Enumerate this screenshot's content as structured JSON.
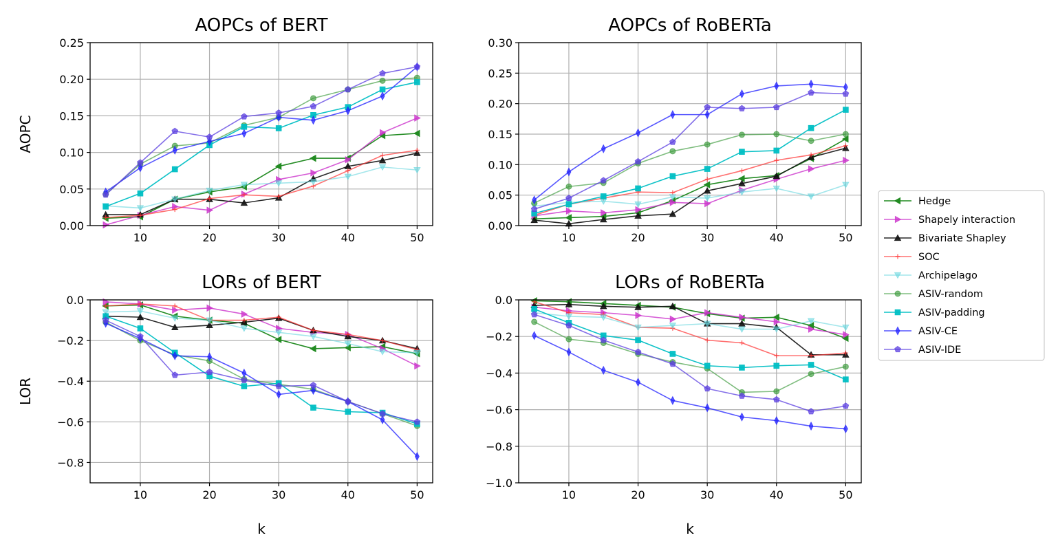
{
  "chart_data": {
    "type": "line",
    "x": [
      5,
      10,
      15,
      20,
      25,
      30,
      35,
      40,
      45,
      50
    ],
    "xlabel": "k",
    "legend": {
      "placement": "right",
      "entries": [
        {
          "name": "Hedge",
          "color": "#228b22",
          "marker": "tri-left",
          "alpha": 1.0
        },
        {
          "name": "Shapely interaction",
          "color": "#cc33cc",
          "marker": "tri-right",
          "alpha": 0.8
        },
        {
          "name": "Bivariate Shapley",
          "color": "#111111",
          "marker": "tri-up",
          "alpha": 0.9
        },
        {
          "name": "SOC",
          "color": "#ff3333",
          "marker": "plus",
          "alpha": 0.7
        },
        {
          "name": "Archipelago",
          "color": "#66d6dd",
          "marker": "tri-down",
          "alpha": 0.6
        },
        {
          "name": "ASIV-random",
          "color": "#3a9a3a",
          "marker": "circle",
          "alpha": 0.65
        },
        {
          "name": "ASIV-padding",
          "color": "#00bfc4",
          "marker": "square",
          "alpha": 0.95
        },
        {
          "name": "ASIV-CE",
          "color": "#1f1fff",
          "marker": "thin-diamond",
          "alpha": 0.75
        },
        {
          "name": "ASIV-IDE",
          "color": "#5b3fe0",
          "marker": "pentagon",
          "alpha": 0.75
        }
      ]
    },
    "panels": [
      {
        "title": "AOPCs of BERT",
        "ylabel": "AOPC",
        "ylim": [
          0,
          0.25
        ],
        "yticks": [
          0,
          0.05,
          0.1,
          0.15,
          0.2,
          0.25
        ],
        "ytick_labels": [
          "0.00",
          "0.05",
          "0.10",
          "0.15",
          "0.20",
          "0.25"
        ],
        "xticks": [
          10,
          20,
          30,
          40,
          50
        ],
        "xtick_labels": [
          "10",
          "20",
          "30",
          "40",
          "50"
        ],
        "grid": true,
        "series": [
          {
            "name": "Hedge",
            "values": [
              0.01,
              0.012,
              0.036,
              0.046,
              0.053,
              0.081,
              0.092,
              0.092,
              0.123,
              0.126
            ]
          },
          {
            "name": "Shapely interaction",
            "values": [
              0.001,
              0.014,
              0.026,
              0.021,
              0.043,
              0.063,
              0.072,
              0.09,
              0.127,
              0.147
            ]
          },
          {
            "name": "Bivariate Shapley",
            "values": [
              0.015,
              0.015,
              0.036,
              0.036,
              0.031,
              0.038,
              0.064,
              0.081,
              0.089,
              0.099
            ]
          },
          {
            "name": "SOC",
            "values": [
              0.011,
              0.014,
              0.022,
              0.037,
              0.042,
              0.04,
              0.054,
              0.075,
              0.096,
              0.103
            ]
          },
          {
            "name": "Archipelago",
            "values": [
              0.027,
              0.024,
              0.036,
              0.048,
              0.056,
              0.058,
              0.06,
              0.067,
              0.08,
              0.076
            ]
          },
          {
            "name": "ASIV-random",
            "values": [
              0.043,
              0.084,
              0.109,
              0.113,
              0.137,
              0.148,
              0.174,
              0.186,
              0.198,
              0.202
            ]
          },
          {
            "name": "ASIV-padding",
            "values": [
              0.026,
              0.044,
              0.077,
              0.11,
              0.135,
              0.133,
              0.151,
              0.162,
              0.186,
              0.196
            ]
          },
          {
            "name": "ASIV-CE",
            "values": [
              0.046,
              0.079,
              0.103,
              0.115,
              0.126,
              0.148,
              0.144,
              0.157,
              0.177,
              0.217
            ]
          },
          {
            "name": "ASIV-IDE",
            "values": [
              0.042,
              0.086,
              0.129,
              0.121,
              0.149,
              0.154,
              0.163,
              0.186,
              0.208,
              0.217
            ]
          }
        ]
      },
      {
        "title": "AOPCs of RoBERTa",
        "ylabel": "",
        "ylim": [
          0,
          0.3
        ],
        "yticks": [
          0,
          0.05,
          0.1,
          0.15,
          0.2,
          0.25,
          0.3
        ],
        "ytick_labels": [
          "0.00",
          "0.05",
          "0.10",
          "0.15",
          "0.20",
          "0.25",
          "0.30"
        ],
        "xticks": [
          10,
          20,
          30,
          40,
          50
        ],
        "xtick_labels": [
          "10",
          "20",
          "30",
          "40",
          "50"
        ],
        "grid": true,
        "series": [
          {
            "name": "Hedge",
            "values": [
              0.011,
              0.013,
              0.015,
              0.021,
              0.041,
              0.067,
              0.077,
              0.082,
              0.11,
              0.142
            ]
          },
          {
            "name": "Shapely interaction",
            "values": [
              0.016,
              0.024,
              0.021,
              0.026,
              0.038,
              0.036,
              0.058,
              0.076,
              0.093,
              0.107
            ]
          },
          {
            "name": "Bivariate Shapley",
            "values": [
              0.009,
              0.003,
              0.01,
              0.016,
              0.019,
              0.057,
              0.069,
              0.081,
              0.112,
              0.127
            ]
          },
          {
            "name": "SOC",
            "values": [
              0.017,
              0.035,
              0.045,
              0.055,
              0.054,
              0.076,
              0.09,
              0.107,
              0.116,
              0.131
            ]
          },
          {
            "name": "Archipelago",
            "values": [
              0.032,
              0.038,
              0.04,
              0.035,
              0.047,
              0.045,
              0.055,
              0.061,
              0.048,
              0.067
            ]
          },
          {
            "name": "ASIV-random",
            "values": [
              0.037,
              0.064,
              0.07,
              0.102,
              0.122,
              0.133,
              0.149,
              0.15,
              0.139,
              0.15
            ]
          },
          {
            "name": "ASIV-padding",
            "values": [
              0.02,
              0.035,
              0.048,
              0.061,
              0.081,
              0.093,
              0.121,
              0.123,
              0.16,
              0.19
            ]
          },
          {
            "name": "ASIV-CE",
            "values": [
              0.042,
              0.088,
              0.126,
              0.152,
              0.182,
              0.182,
              0.216,
              0.229,
              0.232,
              0.227
            ]
          },
          {
            "name": "ASIV-IDE",
            "values": [
              0.027,
              0.045,
              0.074,
              0.105,
              0.137,
              0.194,
              0.192,
              0.194,
              0.218,
              0.216
            ]
          }
        ]
      },
      {
        "title": "LORs of BERT",
        "ylabel": "LOR",
        "ylim": [
          -0.9,
          0
        ],
        "yticks": [
          0,
          -0.2,
          -0.4,
          -0.6,
          -0.8
        ],
        "ytick_labels": [
          "0.0",
          "−0.2",
          "−0.4",
          "−0.6",
          "−0.8"
        ],
        "xticks": [
          10,
          20,
          30,
          40,
          50
        ],
        "xtick_labels": [
          "10",
          "20",
          "30",
          "40",
          "50"
        ],
        "grid": true,
        "series": [
          {
            "name": "Hedge",
            "values": [
              -0.03,
              -0.025,
              -0.08,
              -0.1,
              -0.115,
              -0.195,
              -0.24,
              -0.235,
              -0.23,
              -0.265
            ]
          },
          {
            "name": "Shapely interaction",
            "values": [
              -0.01,
              -0.02,
              -0.05,
              -0.04,
              -0.07,
              -0.14,
              -0.16,
              -0.17,
              -0.24,
              -0.325
            ]
          },
          {
            "name": "Bivariate Shapley",
            "values": [
              -0.08,
              -0.085,
              -0.135,
              -0.125,
              -0.11,
              -0.09,
              -0.15,
              -0.18,
              -0.2,
              -0.24
            ]
          },
          {
            "name": "SOC",
            "values": [
              -0.03,
              -0.02,
              -0.03,
              -0.1,
              -0.1,
              -0.085,
              -0.15,
              -0.17,
              -0.2,
              -0.245
            ]
          },
          {
            "name": "Archipelago",
            "values": [
              -0.06,
              -0.055,
              -0.09,
              -0.1,
              -0.14,
              -0.16,
              -0.18,
              -0.215,
              -0.255,
              -0.26
            ]
          },
          {
            "name": "ASIV-random",
            "values": [
              -0.11,
              -0.2,
              -0.27,
              -0.3,
              -0.39,
              -0.415,
              -0.44,
              -0.5,
              -0.56,
              -0.62
            ]
          },
          {
            "name": "ASIV-padding",
            "values": [
              -0.08,
              -0.14,
              -0.26,
              -0.375,
              -0.425,
              -0.41,
              -0.53,
              -0.55,
              -0.555,
              -0.61
            ]
          },
          {
            "name": "ASIV-CE",
            "values": [
              -0.115,
              -0.19,
              -0.275,
              -0.28,
              -0.36,
              -0.465,
              -0.445,
              -0.5,
              -0.59,
              -0.77
            ]
          },
          {
            "name": "ASIV-IDE",
            "values": [
              -0.1,
              -0.18,
              -0.37,
              -0.355,
              -0.395,
              -0.425,
              -0.42,
              -0.5,
              -0.56,
              -0.6
            ]
          }
        ]
      },
      {
        "title": "LORs of RoBERTa",
        "ylabel": "",
        "ylim": [
          -1.0,
          0
        ],
        "yticks": [
          0,
          -0.2,
          -0.4,
          -0.6,
          -0.8,
          -1.0
        ],
        "ytick_labels": [
          "0.0",
          "−0.2",
          "−0.4",
          "−0.6",
          "−0.8",
          "−1.0"
        ],
        "xticks": [
          10,
          20,
          30,
          40,
          50
        ],
        "xtick_labels": [
          "10",
          "20",
          "30",
          "40",
          "50"
        ],
        "grid": true,
        "series": [
          {
            "name": "Hedge",
            "values": [
              -0.005,
              -0.01,
              -0.02,
              -0.03,
              -0.04,
              -0.075,
              -0.1,
              -0.095,
              -0.14,
              -0.21
            ]
          },
          {
            "name": "Shapely interaction",
            "values": [
              -0.04,
              -0.06,
              -0.07,
              -0.085,
              -0.105,
              -0.07,
              -0.095,
              -0.12,
              -0.16,
              -0.19
            ]
          },
          {
            "name": "Bivariate Shapley",
            "values": [
              -0.03,
              -0.025,
              -0.035,
              -0.04,
              -0.035,
              -0.13,
              -0.13,
              -0.15,
              -0.3,
              -0.3
            ]
          },
          {
            "name": "SOC",
            "values": [
              -0.01,
              -0.07,
              -0.08,
              -0.15,
              -0.155,
              -0.22,
              -0.235,
              -0.305,
              -0.305,
              -0.29
            ]
          },
          {
            "name": "Archipelago",
            "values": [
              -0.07,
              -0.09,
              -0.095,
              -0.15,
              -0.14,
              -0.13,
              -0.16,
              -0.16,
              -0.115,
              -0.15
            ]
          },
          {
            "name": "ASIV-random",
            "values": [
              -0.12,
              -0.215,
              -0.235,
              -0.295,
              -0.34,
              -0.375,
              -0.505,
              -0.5,
              -0.405,
              -0.365
            ]
          },
          {
            "name": "ASIV-padding",
            "values": [
              -0.05,
              -0.125,
              -0.195,
              -0.22,
              -0.295,
              -0.36,
              -0.37,
              -0.36,
              -0.355,
              -0.435
            ]
          },
          {
            "name": "ASIV-CE",
            "values": [
              -0.195,
              -0.285,
              -0.385,
              -0.45,
              -0.55,
              -0.59,
              -0.64,
              -0.66,
              -0.69,
              -0.705
            ]
          },
          {
            "name": "ASIV-IDE",
            "values": [
              -0.08,
              -0.14,
              -0.22,
              -0.285,
              -0.35,
              -0.485,
              -0.525,
              -0.545,
              -0.61,
              -0.58
            ]
          }
        ]
      }
    ]
  }
}
